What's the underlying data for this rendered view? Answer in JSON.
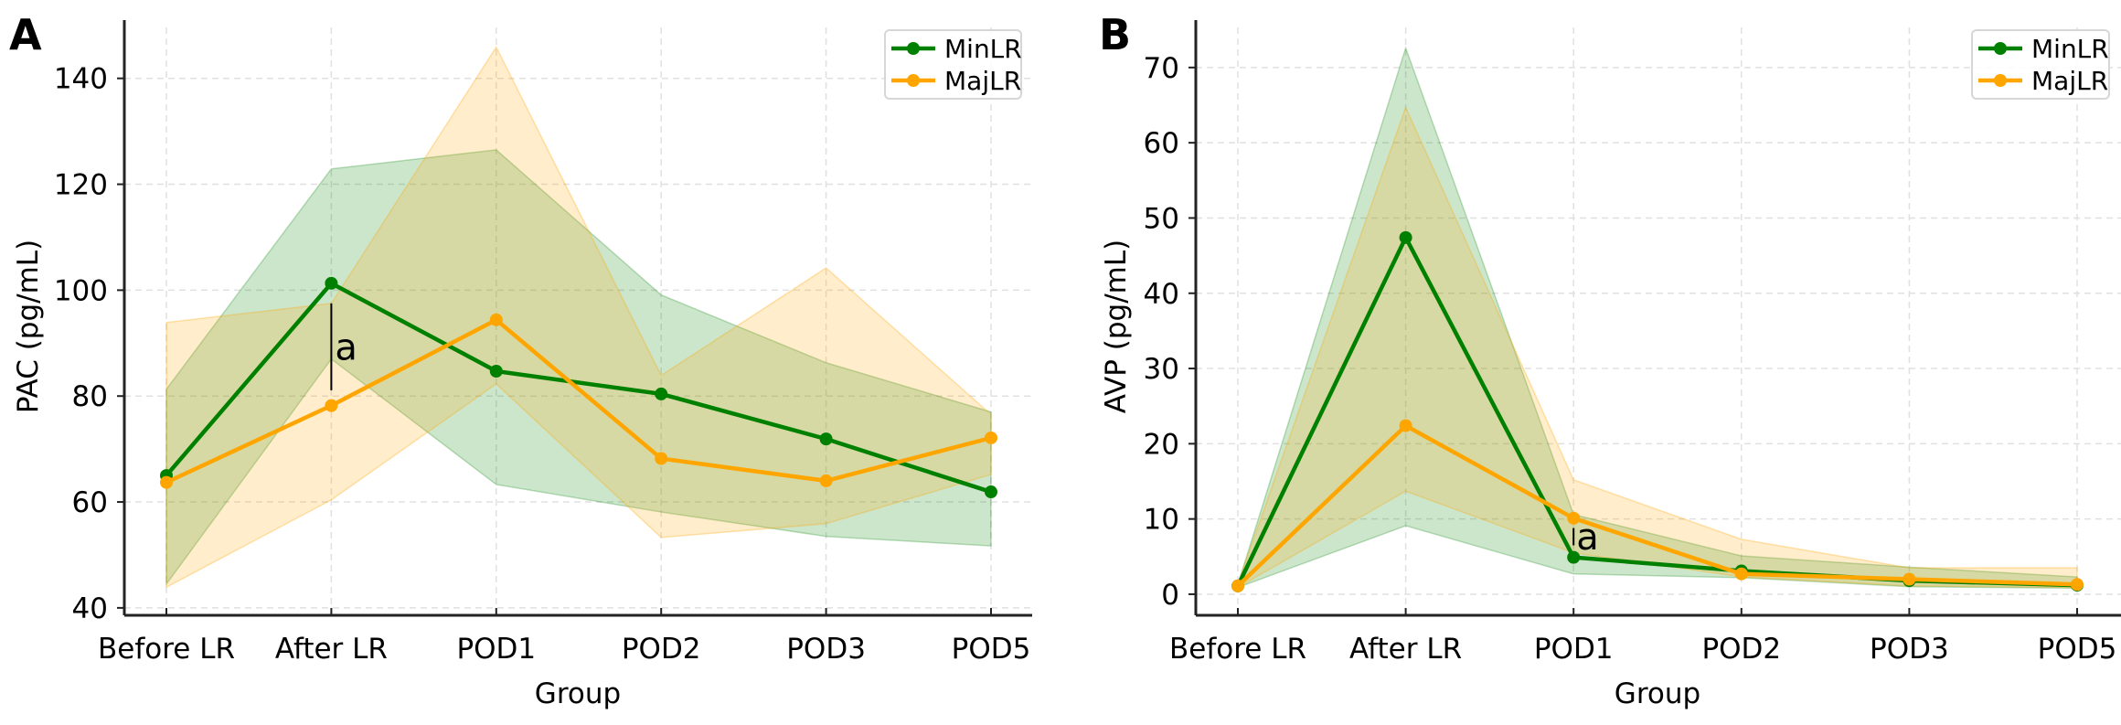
{
  "chart_data": [
    {
      "type": "line",
      "panel_label": "A",
      "title": "",
      "xlabel": "Group",
      "ylabel": "PAC (pg/mL)",
      "categories": [
        "Before LR",
        "After LR",
        "POD1",
        "POD2",
        "POD3",
        "POD5"
      ],
      "yticks": [
        40,
        60,
        80,
        100,
        120,
        140
      ],
      "ylim": [
        38.6,
        151
      ],
      "grid": true,
      "legend_position": "top-right",
      "series": [
        {
          "name": "MinLR",
          "color": "#008000",
          "values": [
            65.0,
            101.3,
            84.7,
            80.4,
            71.9,
            61.9
          ],
          "band_upper": [
            81.3,
            122.9,
            126.5,
            99.1,
            86.3,
            77.0
          ],
          "band_lower": [
            44.5,
            87.0,
            63.3,
            58.1,
            53.5,
            51.7
          ]
        },
        {
          "name": "MajLR",
          "color": "#FFA500",
          "values": [
            63.7,
            78.2,
            94.4,
            68.2,
            64.0,
            72.1
          ],
          "band_upper": [
            93.9,
            97.5,
            145.9,
            83.9,
            104.2,
            76.5
          ],
          "band_lower": [
            43.9,
            60.4,
            82.3,
            53.3,
            55.9,
            65.2
          ]
        }
      ],
      "annotations": [
        {
          "text": "a",
          "category": "After LR",
          "from": 97.5,
          "to": 81.1
        }
      ]
    },
    {
      "type": "line",
      "panel_label": "B",
      "title": "",
      "xlabel": "Group",
      "ylabel": "AVP (pg/mL)",
      "categories": [
        "Before LR",
        "After LR",
        "POD1",
        "POD2",
        "POD3",
        "POD5"
      ],
      "yticks": [
        0,
        10,
        20,
        30,
        40,
        50,
        60,
        70
      ],
      "ylim": [
        -2.8,
        76.3
      ],
      "grid": true,
      "legend_position": "top-right",
      "series": [
        {
          "name": "MinLR",
          "color": "#008000",
          "values": [
            1.1,
            47.4,
            4.9,
            3.1,
            1.8,
            1.2
          ],
          "band_upper": [
            1.3,
            72.6,
            10.6,
            5.1,
            3.6,
            2.3
          ],
          "band_lower": [
            0.9,
            9.1,
            2.7,
            2.2,
            1.0,
            0.8
          ]
        },
        {
          "name": "MajLR",
          "color": "#FFA500",
          "values": [
            1.1,
            22.4,
            10.1,
            2.7,
            2.0,
            1.3
          ],
          "band_upper": [
            1.4,
            64.7,
            15.2,
            7.3,
            3.5,
            3.5
          ],
          "band_lower": [
            0.9,
            13.7,
            5.5,
            2.3,
            1.1,
            0.9
          ]
        }
      ],
      "annotations": [
        {
          "text": "a",
          "category": "POD1",
          "from": 8.8,
          "to": 6.5
        }
      ]
    }
  ]
}
